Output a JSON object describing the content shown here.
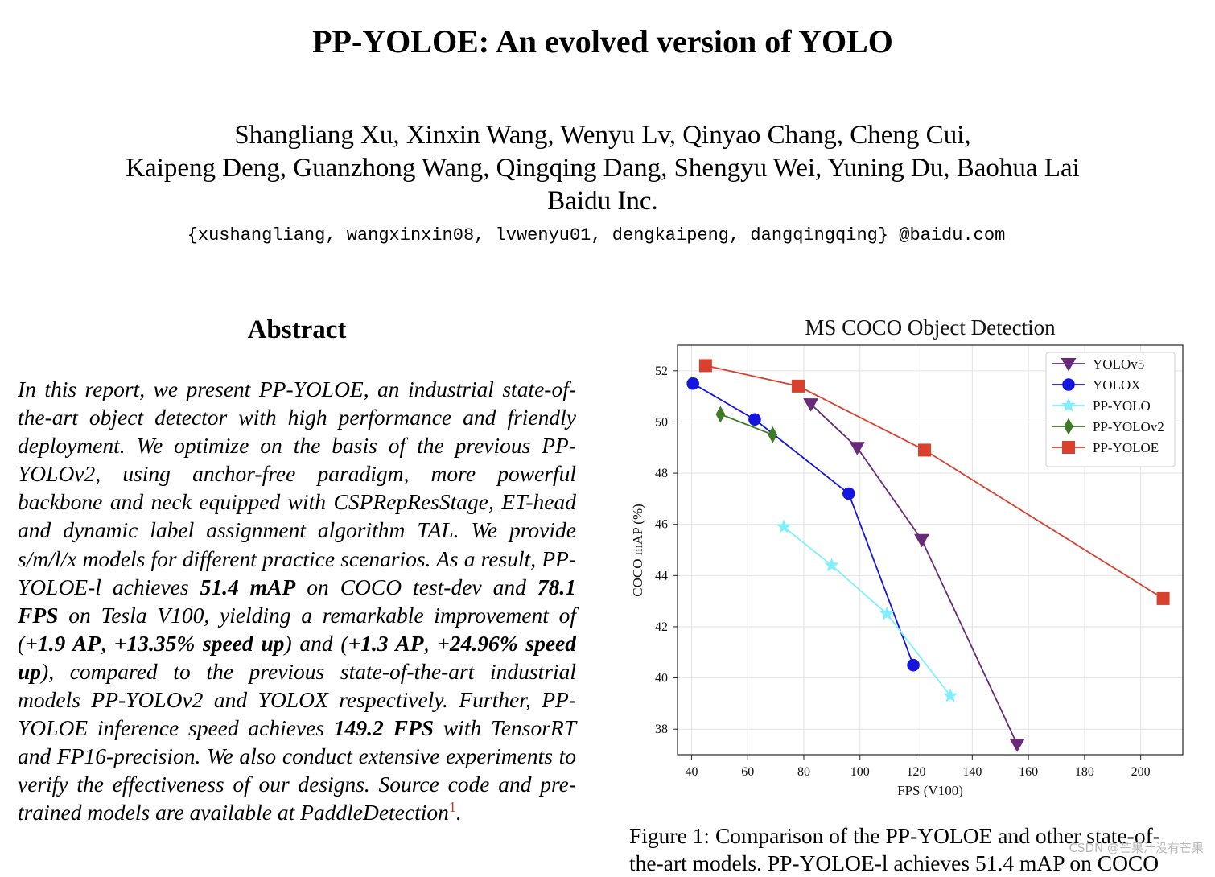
{
  "paper": {
    "title": "PP-YOLOE: An evolved version of YOLO",
    "authors_line1": "Shangliang Xu, Xinxin Wang, Wenyu Lv, Qinyao Chang, Cheng Cui,",
    "authors_line2": "Kaipeng Deng, Guanzhong Wang, Qingqing Dang, Shengyu Wei, Yuning Du, Baohua Lai",
    "affiliation": "Baidu Inc.",
    "emails": "{xushangliang, wangxinxin08, lvwenyu01, dengkaipeng, dangqingqing} @baidu.com"
  },
  "abstract": {
    "heading": "Abstract",
    "t1": "In this report, we present PP-YOLOE, an industrial state-of-the-art object detector with high performance and friendly deployment. We optimize on the basis of the previous PP-YOLOv2, using anchor-free paradigm, more powerful backbone and neck equipped with CSPRepResStage, ET-head and dynamic label assignment algorithm TAL. We provide s/m/l/x models for different practice scenarios. As a result, PP-YOLOE-l achieves ",
    "b1": "51.4 mAP",
    "t2": " on COCO test-dev and ",
    "b2": "78.1 FPS",
    "t3": " on Tesla V100, yielding a remarkable improvement of (",
    "b3": "+1.9 AP",
    "t4": ", ",
    "b4": "+13.35% speed up",
    "t5": ") and (",
    "b5": "+1.3 AP",
    "t6": ", ",
    "b6": "+24.96% speed up",
    "t7": "), compared to the previous state-of-the-art industrial models PP-YOLOv2 and YOLOX respectively. Further, PP-YOLOE inference speed achieves ",
    "b7": "149.2 FPS",
    "t8": " with TensorRT and FP16-precision. We also conduct extensive experiments to verify the effectiveness of our designs. Source code and pre-trained models are available at PaddleDetection",
    "footnote": "1",
    "t9": "."
  },
  "figure": {
    "caption": "Figure 1: Comparison of the PP-YOLOE and other state-of-the-art models. PP-YOLOE-l achieves 51.4 mAP on COCO"
  },
  "watermark": "CSDN @芒果汁没有芒果",
  "chart_data": {
    "type": "line",
    "title": "MS COCO Object Detection",
    "xlabel": "FPS (V100)",
    "ylabel": "COCO mAP (%)",
    "xlim": [
      35,
      215
    ],
    "ylim": [
      37,
      53
    ],
    "xticks": [
      40,
      60,
      80,
      100,
      120,
      140,
      160,
      180,
      200
    ],
    "yticks": [
      38,
      40,
      42,
      44,
      46,
      48,
      50,
      52
    ],
    "grid": true,
    "legend": "top-right",
    "series": [
      {
        "name": "YOLOv5",
        "marker": "triangle-down",
        "color": "#6a2a7a",
        "points": [
          [
            82.5,
            50.7
          ],
          [
            99,
            49.0
          ],
          [
            122,
            45.4
          ],
          [
            156,
            37.4
          ]
        ]
      },
      {
        "name": "YOLOX",
        "marker": "circle",
        "color": "#1515e0",
        "points": [
          [
            40.5,
            51.5
          ],
          [
            62.5,
            50.1
          ],
          [
            96,
            47.2
          ],
          [
            119,
            40.5
          ]
        ]
      },
      {
        "name": "PP-YOLO",
        "marker": "star",
        "color": "#80f0ff",
        "points": [
          [
            72.9,
            45.9
          ],
          [
            89.9,
            44.4
          ],
          [
            109.6,
            42.5
          ],
          [
            132.2,
            39.3
          ]
        ]
      },
      {
        "name": "PP-YOLOv2",
        "marker": "diamond",
        "color": "#3f7a28",
        "points": [
          [
            50.3,
            50.3
          ],
          [
            68.9,
            49.5
          ]
        ]
      },
      {
        "name": "PP-YOLOE",
        "marker": "square",
        "color": "#d9402e",
        "points": [
          [
            45,
            52.2
          ],
          [
            78,
            51.4
          ],
          [
            123,
            48.9
          ],
          [
            208,
            43.1
          ]
        ]
      }
    ]
  }
}
